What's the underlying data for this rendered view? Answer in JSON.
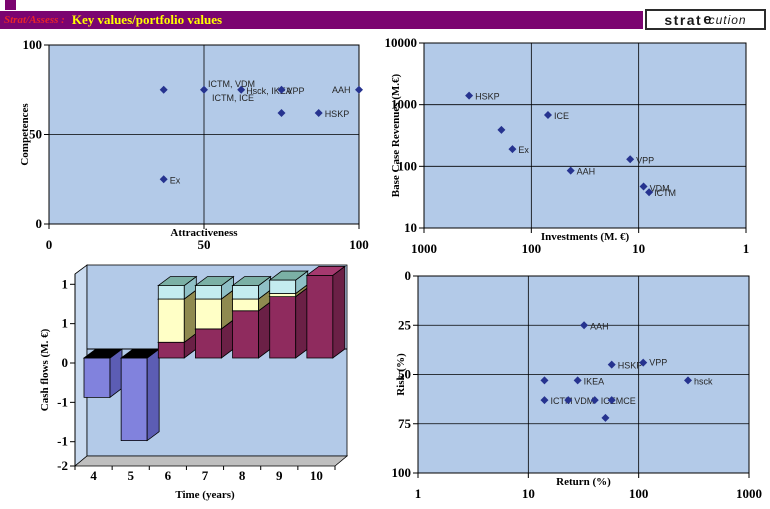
{
  "header": {
    "prefix_label": "Strat/Assess :",
    "title": "Key values/portfolio values",
    "logo_part1": "strat",
    "logo_part2": "e",
    "logo_part3": "cution"
  },
  "colors": {
    "header_bar": "#7B0470",
    "header_prefix_text": "#E8242C",
    "header_title_text": "#FFFF00",
    "plot_bg": "#B3CAE8",
    "axis": "#000000",
    "marker": "#26338F",
    "floor": "#BFBFBF",
    "left_wall": "#C9DAEF",
    "bars": {
      "periwinkle": {
        "front": "#8182DD",
        "side": "#5C5DB4",
        "top": "#000000"
      },
      "maroon": {
        "front": "#8F2B5E",
        "side": "#6B2046",
        "top": "#A5396F"
      },
      "yellow": {
        "front": "#FFFFC6",
        "side": "#8F8A50",
        "top": "#8F8A50"
      },
      "cyan": {
        "front": "#C4ECEF",
        "side": "#8FC0C6",
        "top": "#7BB0A5"
      }
    }
  },
  "chart_data": [
    {
      "id": "portfolio",
      "type": "scatter",
      "xlabel": "Attractiveness",
      "ylabel": "Competences",
      "x_scale": "linear",
      "y_scale": "linear",
      "x_range": [
        0,
        100
      ],
      "y_range": [
        100,
        0
      ],
      "x_ticks": [
        {
          "v": 0,
          "label": "0"
        },
        {
          "v": 50,
          "label": "50"
        },
        {
          "v": 100,
          "label": "100"
        }
      ],
      "y_ticks": [
        {
          "v": 100,
          "label": "100"
        },
        {
          "v": 50,
          "label": "50"
        },
        {
          "v": 0,
          "label": "0"
        }
      ],
      "x_grid": [
        50
      ],
      "y_grid": [
        50
      ],
      "points": [
        {
          "x": 37,
          "y": 75,
          "labels": []
        },
        {
          "x": 50,
          "y": 75,
          "labels": [
            [
              "ICTM, VDM",
              4,
              -3
            ],
            [
              "ICTM, ICE",
              8,
              11
            ]
          ]
        },
        {
          "x": 62,
          "y": 75,
          "labels": [
            [
              "Hsck, IKEA",
              5,
              4
            ]
          ]
        },
        {
          "x": 75,
          "y": 75,
          "labels": [
            [
              "VPP",
              5,
              4
            ]
          ]
        },
        {
          "x": 75,
          "y": 62,
          "labels": []
        },
        {
          "x": 87,
          "y": 62,
          "labels": [
            [
              "HSKP",
              6,
              4
            ]
          ]
        },
        {
          "x": 100,
          "y": 75,
          "labels": [
            [
              "AAH",
              -27,
              3
            ]
          ]
        },
        {
          "x": 37,
          "y": 25,
          "labels": [
            [
              "Ex",
              6,
              4
            ]
          ]
        }
      ]
    },
    {
      "id": "revenues",
      "type": "scatter",
      "xlabel": "Investments (M. €)",
      "ylabel": "Base Case Revenues (M.€)",
      "x_scale": "log",
      "y_scale": "log",
      "x_range": [
        1000,
        1
      ],
      "y_range": [
        10000,
        10
      ],
      "x_ticks": [
        {
          "v": 1000,
          "label": "1000"
        },
        {
          "v": 100,
          "label": "100"
        },
        {
          "v": 10,
          "label": "10"
        },
        {
          "v": 1,
          "label": "1"
        }
      ],
      "y_ticks": [
        {
          "v": 10000,
          "label": "10000"
        },
        {
          "v": 1000,
          "label": "1000"
        },
        {
          "v": 100,
          "label": "100"
        },
        {
          "v": 10,
          "label": "10"
        }
      ],
      "x_grid": [
        100,
        10
      ],
      "y_grid": [
        1000,
        100
      ],
      "points": [
        {
          "x": 380,
          "y": 1400,
          "labels": [
            [
              "HSKP",
              6,
              4
            ]
          ]
        },
        {
          "x": 190,
          "y": 390,
          "labels": []
        },
        {
          "x": 70,
          "y": 680,
          "labels": [
            [
              "ICE",
              6,
              4
            ]
          ]
        },
        {
          "x": 150,
          "y": 190,
          "labels": [
            [
              "Ex",
              6,
              4
            ]
          ]
        },
        {
          "x": 12,
          "y": 130,
          "labels": [
            [
              "VPP",
              6,
              4
            ]
          ]
        },
        {
          "x": 43,
          "y": 85,
          "labels": [
            [
              "AAH",
              6,
              4
            ]
          ]
        },
        {
          "x": 9,
          "y": 47,
          "labels": [
            [
              "VDM",
              6,
              5
            ]
          ]
        },
        {
          "x": 8,
          "y": 38,
          "labels": [
            [
              "ICTM",
              5,
              4
            ]
          ]
        }
      ]
    },
    {
      "id": "cashflow",
      "type": "bar3d",
      "xlabel": "Time (years)",
      "ylabel": "Cash flows (M. €)",
      "categories": [
        "4",
        "5",
        "6",
        "7",
        "8",
        "9",
        "10"
      ],
      "y_ticks": [
        {
          "v": 1.0,
          "label": "1"
        },
        {
          "v": 0.5,
          "label": "1"
        },
        {
          "v": 0,
          "label": "0"
        },
        {
          "v": -0.5,
          "label": "-1"
        },
        {
          "v": -1.0,
          "label": "-1"
        },
        {
          "v": -1.5,
          "label": "-2"
        }
      ],
      "series": [
        {
          "color": "periwinkle",
          "values": [
            -0.5,
            -1.05,
            0,
            0,
            0,
            0,
            0
          ]
        },
        {
          "color": "maroon",
          "values": [
            0,
            0,
            0.2,
            0.37,
            0.6,
            0.78,
            1.05
          ]
        },
        {
          "color": "yellow",
          "values": [
            0,
            0,
            0.55,
            0.38,
            0.15,
            0.04,
            0
          ]
        },
        {
          "color": "cyan",
          "values": [
            0,
            0,
            0.17,
            0.17,
            0.17,
            0.17,
            0
          ]
        }
      ]
    },
    {
      "id": "risk",
      "type": "scatter",
      "xlabel": "Return (%)",
      "ylabel": "Risk (%)",
      "x_scale": "log",
      "y_scale": "linear",
      "x_range": [
        1,
        1000
      ],
      "y_range": [
        0,
        100
      ],
      "x_ticks": [
        {
          "v": 1,
          "label": "1"
        },
        {
          "v": 10,
          "label": "10"
        },
        {
          "v": 100,
          "label": "100"
        },
        {
          "v": 1000,
          "label": "1000"
        }
      ],
      "y_ticks": [
        {
          "v": 0,
          "label": "0"
        },
        {
          "v": 25,
          "label": "25"
        },
        {
          "v": 50,
          "label": "50"
        },
        {
          "v": 75,
          "label": "75"
        },
        {
          "v": 100,
          "label": "100"
        }
      ],
      "x_grid": [
        10,
        100
      ],
      "y_grid": [
        25,
        50,
        75
      ],
      "points": [
        {
          "x": 32,
          "y": 25,
          "labels": [
            [
              "AAH",
              6,
              4
            ]
          ]
        },
        {
          "x": 57,
          "y": 45,
          "labels": [
            [
              "HSKP",
              6,
              4
            ]
          ]
        },
        {
          "x": 110,
          "y": 44,
          "labels": [
            [
              "VPP",
              6,
              3
            ]
          ]
        },
        {
          "x": 14,
          "y": 53,
          "labels": []
        },
        {
          "x": 28,
          "y": 53,
          "labels": [
            [
              "IKEA",
              6,
              4
            ]
          ]
        },
        {
          "x": 280,
          "y": 53,
          "labels": [
            [
              "hsck",
              6,
              4
            ]
          ]
        },
        {
          "x": 14,
          "y": 63,
          "labels": [
            [
              "ICTM",
              6,
              4
            ]
          ]
        },
        {
          "x": 23,
          "y": 63,
          "labels": [
            [
              "VDM",
              6,
              4
            ]
          ]
        },
        {
          "x": 40,
          "y": 63,
          "labels": [
            [
              "ICE",
              6,
              4
            ]
          ]
        },
        {
          "x": 57,
          "y": 63,
          "labels": [
            [
              "MCE",
              4,
              4
            ]
          ]
        },
        {
          "x": 50,
          "y": 72,
          "labels": []
        }
      ]
    }
  ]
}
